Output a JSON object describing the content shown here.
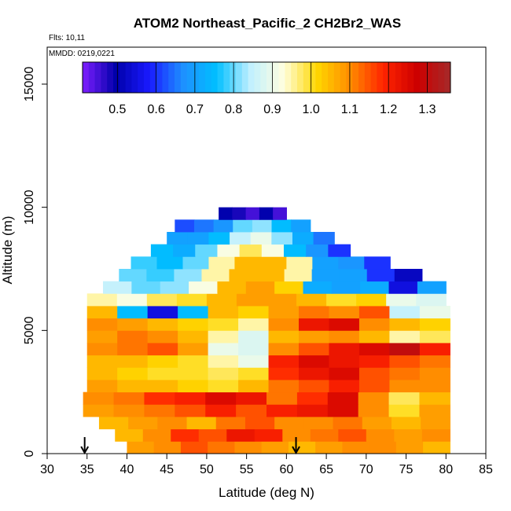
{
  "chart_data": {
    "type": "heatmap",
    "title": "ATOM2 Northeast_Pacific_2 CH2Br2_WAS",
    "flights_label": "Flts: 10,11",
    "dates_label": "MMDD: 0219,0221",
    "xlabel": "Latitude (deg N)",
    "ylabel": "Altitude (m)",
    "xlim": [
      30,
      85
    ],
    "ylim": [
      0,
      16500
    ],
    "x_ticks": [
      "30",
      "35",
      "40",
      "45",
      "50",
      "55",
      "60",
      "65",
      "70",
      "75",
      "80",
      "85"
    ],
    "y_ticks": [
      "0",
      "5000",
      "10000",
      "15000"
    ],
    "grid": false,
    "colorbar": {
      "range": [
        0.41,
        1.36
      ],
      "labels": [
        "0.5",
        "0.6",
        "0.7",
        "0.8",
        "0.9",
        "1.0",
        "1.1",
        "1.2",
        "1.3"
      ],
      "colors": [
        "#7f1fff",
        "#0000aa",
        "#1a1aff",
        "#1e90ff",
        "#00bfff",
        "#bfefff",
        "#ffffe0",
        "#ffd700",
        "#ff8c00",
        "#ff2400",
        "#cd0000",
        "#a52a2a"
      ]
    },
    "arrows_at_latitude": [
      34.7,
      61.2
    ],
    "value_bands": [
      {
        "altitude": [
          0,
          500
        ],
        "from_lat": 40,
        "to_lat": 80.5,
        "values": [
          1.08,
          1.1,
          1.15,
          1.12,
          1.1,
          1.08,
          1.05,
          1.08,
          1.1,
          1.1,
          1.08,
          1.05
        ]
      },
      {
        "altitude": [
          500,
          1000
        ],
        "from_lat": 38.5,
        "to_lat": 80.5,
        "values": [
          1.05,
          1.1,
          1.18,
          1.15,
          1.22,
          1.2,
          1.1,
          1.12,
          1.15,
          1.1,
          1.08,
          1.1
        ]
      },
      {
        "altitude": [
          1000,
          1500
        ],
        "from_lat": 36.5,
        "to_lat": 80.5,
        "values": [
          1.05,
          1.08,
          1.1,
          1.05,
          1.12,
          1.15,
          1.1,
          1.1,
          1.12,
          1.08,
          1.05,
          1.08
        ]
      },
      {
        "altitude": [
          1500,
          2000
        ],
        "from_lat": 34.5,
        "to_lat": 80.5,
        "values": [
          1.08,
          1.1,
          1.12,
          1.15,
          1.2,
          1.15,
          1.2,
          1.22,
          1.25,
          1.1,
          1.0,
          1.08
        ]
      },
      {
        "altitude": [
          2000,
          2500
        ],
        "from_lat": 34.5,
        "to_lat": 80.5,
        "values": [
          1.1,
          1.12,
          1.18,
          1.2,
          1.25,
          1.22,
          1.12,
          1.18,
          1.25,
          1.1,
          0.98,
          1.05
        ]
      },
      {
        "altitude": [
          2500,
          3000
        ],
        "from_lat": 35,
        "to_lat": 80.5,
        "values": [
          1.08,
          1.05,
          1.05,
          1.02,
          1.0,
          1.05,
          1.12,
          1.15,
          1.2,
          1.15,
          1.1,
          1.1
        ]
      },
      {
        "altitude": [
          3000,
          3500
        ],
        "from_lat": 35,
        "to_lat": 80.5,
        "values": [
          1.05,
          1.02,
          1.0,
          1.0,
          0.98,
          1.0,
          1.18,
          1.22,
          1.25,
          1.15,
          1.12,
          1.1
        ]
      },
      {
        "altitude": [
          3500,
          4000
        ],
        "from_lat": 35,
        "to_lat": 80.5,
        "values": [
          1.05,
          1.05,
          1.02,
          1.0,
          0.95,
          0.9,
          1.2,
          1.25,
          1.22,
          1.2,
          1.15,
          1.12
        ]
      },
      {
        "altitude": [
          4000,
          4500
        ],
        "from_lat": 35,
        "to_lat": 80.5,
        "values": [
          1.1,
          1.12,
          1.15,
          1.08,
          0.9,
          0.88,
          1.1,
          1.15,
          1.22,
          1.25,
          1.3,
          1.2
        ]
      },
      {
        "altitude": [
          4500,
          5000
        ],
        "from_lat": 35,
        "to_lat": 80.5,
        "values": [
          1.08,
          1.12,
          1.1,
          1.05,
          0.95,
          0.88,
          1.05,
          1.08,
          1.1,
          1.05,
          0.95,
          0.98
        ]
      },
      {
        "altitude": [
          5000,
          5500
        ],
        "from_lat": 35,
        "to_lat": 80.5,
        "values": [
          1.1,
          1.08,
          1.05,
          1.02,
          1.0,
          0.95,
          1.1,
          1.22,
          1.25,
          1.1,
          1.05,
          1.02
        ]
      },
      {
        "altitude": [
          5500,
          6000
        ],
        "from_lat": 35,
        "to_lat": 80.5,
        "values": [
          1.05,
          0.75,
          0.55,
          0.75,
          1.05,
          1.02,
          1.08,
          1.12,
          1.1,
          1.15,
          0.85,
          0.9
        ]
      },
      {
        "altitude": [
          6000,
          6500
        ],
        "from_lat": 35,
        "to_lat": 80,
        "values": [
          0.95,
          0.92,
          0.98,
          1.0,
          1.05,
          1.08,
          1.08,
          1.05,
          1.0,
          1.02,
          0.9,
          0.88
        ]
      },
      {
        "altitude": [
          6500,
          7000
        ],
        "from_lat": 37,
        "to_lat": 80,
        "values": [
          0.85,
          0.8,
          0.82,
          0.92,
          1.05,
          1.08,
          1.02,
          0.72,
          0.7,
          0.72,
          0.55,
          0.7
        ]
      },
      {
        "altitude": [
          7000,
          7500
        ],
        "from_lat": 39,
        "to_lat": 77,
        "values": [
          0.8,
          0.78,
          0.82,
          0.95,
          1.05,
          1.05,
          0.95,
          0.7,
          0.7,
          0.6,
          0.52
        ]
      },
      {
        "altitude": [
          7500,
          8000
        ],
        "from_lat": 40.5,
        "to_lat": 73,
        "values": [
          0.78,
          0.75,
          0.8,
          0.95,
          1.05,
          1.05,
          0.95,
          0.7,
          0.68,
          0.6
        ]
      },
      {
        "altitude": [
          8000,
          8500
        ],
        "from_lat": 43,
        "to_lat": 68,
        "values": [
          0.75,
          0.72,
          0.8,
          0.92,
          0.98,
          0.92,
          0.75,
          0.68,
          0.6
        ]
      },
      {
        "altitude": [
          8500,
          9000
        ],
        "from_lat": 45,
        "to_lat": 66,
        "values": [
          0.7,
          0.7,
          0.75,
          0.85,
          0.9,
          0.82,
          0.72,
          0.65
        ]
      },
      {
        "altitude": [
          9000,
          9500
        ],
        "from_lat": 46,
        "to_lat": 63,
        "values": [
          0.62,
          0.65,
          0.68,
          0.8,
          0.82,
          0.75,
          0.7
        ]
      },
      {
        "altitude": [
          9500,
          10000
        ],
        "from_lat": 51.5,
        "to_lat": 60,
        "values": [
          0.5,
          0.48,
          0.45,
          0.5,
          0.45
        ]
      }
    ]
  }
}
